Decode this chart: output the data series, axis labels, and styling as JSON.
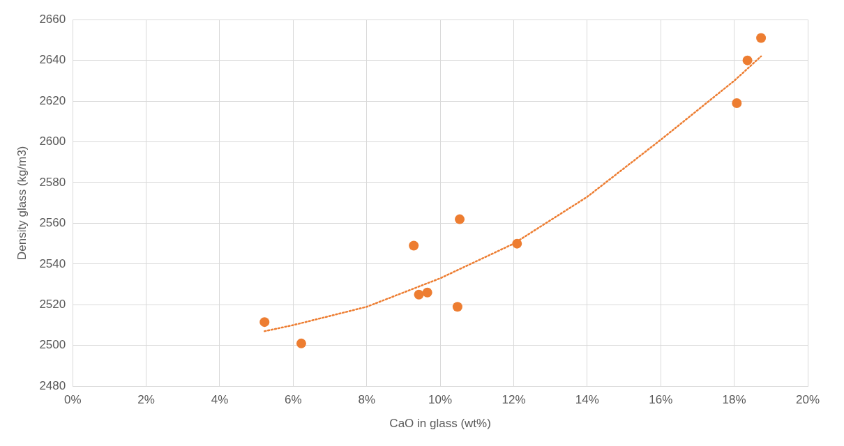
{
  "chart_data": {
    "type": "scatter",
    "xlabel": "CaO in glass (wt%)",
    "ylabel": "Density glass (kg/m3)",
    "xlim": [
      0,
      20
    ],
    "xticks": [
      {
        "value": 0,
        "label": "0%"
      },
      {
        "value": 2,
        "label": "2%"
      },
      {
        "value": 4,
        "label": "4%"
      },
      {
        "value": 6,
        "label": "6%"
      },
      {
        "value": 8,
        "label": "8%"
      },
      {
        "value": 10,
        "label": "10%"
      },
      {
        "value": 12,
        "label": "12%"
      },
      {
        "value": 14,
        "label": "14%"
      },
      {
        "value": 16,
        "label": "16%"
      },
      {
        "value": 18,
        "label": "18%"
      },
      {
        "value": 20,
        "label": "20%"
      }
    ],
    "ylim": [
      2480,
      2660
    ],
    "yticks": [
      2480,
      2500,
      2520,
      2540,
      2560,
      2580,
      2600,
      2620,
      2640,
      2660
    ],
    "grid": true,
    "legend": false,
    "series": [
      {
        "type": "scatter",
        "color": "#ed7d31",
        "marker": "circle",
        "x": [
          5.22,
          6.22,
          9.28,
          9.42,
          9.65,
          10.53,
          10.47,
          12.09,
          18.07,
          18.36,
          18.73
        ],
        "values": [
          2511.5,
          2501,
          2549,
          2525,
          2526,
          2562,
          2519,
          2550,
          2619,
          2640,
          2651
        ]
      },
      {
        "type": "line",
        "color": "#ed7d31",
        "marker": "none",
        "line_style": "dotted",
        "x": [
          5.22,
          6,
          8,
          10,
          12,
          14,
          16,
          18,
          18.73
        ],
        "values": [
          2507,
          2510,
          2519,
          2533,
          2550,
          2573,
          2601,
          2630,
          2642
        ]
      }
    ]
  }
}
